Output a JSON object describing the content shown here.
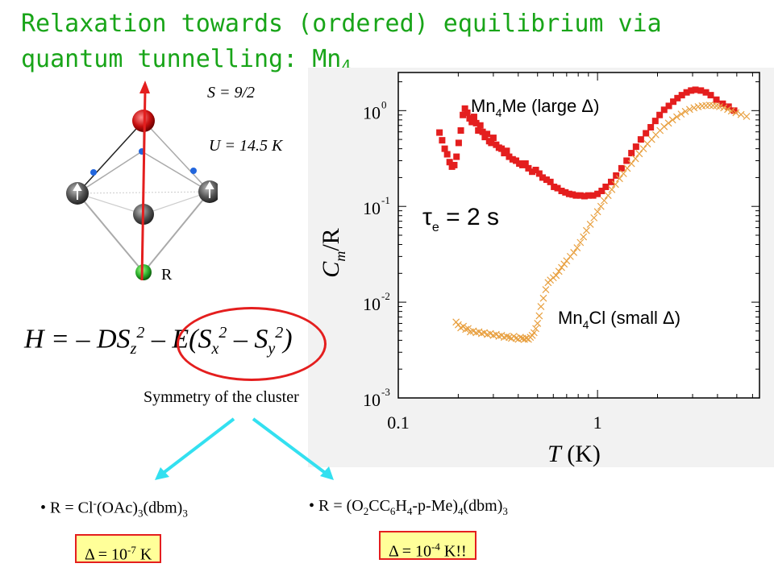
{
  "slide": {
    "title_line1": "Relaxation towards (ordered) equilibrium via",
    "title_line2": "quantum tunnelling: Mn",
    "title_sub": "4",
    "spin": "S = 9/2",
    "barrier": "U = 14.5 K",
    "r_label": "R",
    "hamiltonian": {
      "part1": "H = – DS",
      "z": "z",
      "two_a": "2",
      "part2": " – E(S",
      "x": "x",
      "two_b": "2",
      "part3": " – S",
      "y": "y",
      "two_c": "2",
      "part4": ")"
    },
    "symmetry_text": "Symmetry of the cluster",
    "bullet_left": {
      "prefix": "• R = Cl",
      "sup": "-",
      "mid": "(OAc)",
      "sub1": "3",
      "mid2": "(dbm)",
      "sub2": "3"
    },
    "bullet_right": {
      "prefix": "• R = (O",
      "s1": "2",
      "t1": "CC",
      "s2": "6",
      "t2": "H",
      "s3": "4",
      "t3": "-p-Me)",
      "s4": "4",
      "t4": "(dbm)",
      "s5": "3"
    },
    "box_left": {
      "pre": "Δ = 10",
      "exp": "-7",
      "post": " K"
    },
    "box_right": {
      "pre": "Δ = 10",
      "exp": "-4",
      "post": " K!!"
    },
    "colors": {
      "title": "#19a519",
      "red": "#e41e1e",
      "orange": "#e8a040",
      "cyan": "#33e0f0",
      "box": "#ffff99"
    }
  },
  "chart_data": {
    "type": "scatter",
    "xscale": "log",
    "yscale": "log",
    "xlim": [
      0.1,
      6.5
    ],
    "ylim": [
      0.001,
      2.5
    ],
    "xticks": [
      {
        "v": 0.1,
        "label": "0.1"
      },
      {
        "v": 1,
        "label": "1"
      }
    ],
    "yticks": [
      {
        "v": 1,
        "base": "10",
        "exp": "0"
      },
      {
        "v": 0.1,
        "base": "10",
        "exp": "-1"
      },
      {
        "v": 0.01,
        "base": "10",
        "exp": "-2"
      },
      {
        "v": 0.001,
        "base": "10",
        "exp": "-3"
      }
    ],
    "xlabel": "T (K)",
    "ylabel": "Cm/R",
    "annotation": "τe = 2 s",
    "series": [
      {
        "name": "Mn4Me (large Δ)",
        "marker": "square",
        "color": "#e41e1e",
        "x": [
          0.161,
          0.166,
          0.171,
          0.176,
          0.181,
          0.186,
          0.191,
          0.196,
          0.201,
          0.206,
          0.211,
          0.216,
          0.222,
          0.228,
          0.234,
          0.24,
          0.246,
          0.252,
          0.258,
          0.265,
          0.272,
          0.279,
          0.286,
          0.293,
          0.3,
          0.31,
          0.32,
          0.33,
          0.34,
          0.35,
          0.36,
          0.375,
          0.39,
          0.405,
          0.42,
          0.435,
          0.45,
          0.47,
          0.49,
          0.51,
          0.53,
          0.555,
          0.58,
          0.605,
          0.63,
          0.66,
          0.69,
          0.72,
          0.75,
          0.78,
          0.82,
          0.86,
          0.9,
          0.95,
          1.0,
          1.05,
          1.1,
          1.17,
          1.24,
          1.32,
          1.4,
          1.48,
          1.56,
          1.65,
          1.75,
          1.85,
          1.95,
          2.05,
          2.16,
          2.28,
          2.4,
          2.52,
          2.65,
          2.8,
          2.95,
          3.1,
          3.3,
          3.5,
          3.7,
          3.95,
          4.25,
          4.55,
          4.85
        ],
        "y": [
          0.59,
          0.49,
          0.4,
          0.35,
          0.29,
          0.26,
          0.27,
          0.33,
          0.46,
          0.62,
          0.9,
          1.05,
          0.95,
          0.83,
          0.76,
          0.86,
          0.74,
          0.62,
          0.7,
          0.6,
          0.53,
          0.57,
          0.48,
          0.46,
          0.52,
          0.44,
          0.41,
          0.4,
          0.36,
          0.38,
          0.33,
          0.31,
          0.3,
          0.28,
          0.27,
          0.28,
          0.25,
          0.23,
          0.24,
          0.22,
          0.2,
          0.19,
          0.18,
          0.16,
          0.155,
          0.145,
          0.14,
          0.135,
          0.133,
          0.13,
          0.13,
          0.128,
          0.13,
          0.13,
          0.135,
          0.145,
          0.16,
          0.18,
          0.21,
          0.25,
          0.3,
          0.36,
          0.42,
          0.5,
          0.58,
          0.67,
          0.78,
          0.9,
          1.02,
          1.12,
          1.24,
          1.35,
          1.45,
          1.55,
          1.62,
          1.65,
          1.62,
          1.55,
          1.45,
          1.3,
          1.18,
          1.1,
          1.0
        ]
      },
      {
        "name": "Mn4Cl (small Δ)",
        "marker": "cross",
        "color": "#e8a040",
        "x": [
          0.195,
          0.2,
          0.206,
          0.212,
          0.218,
          0.224,
          0.23,
          0.238,
          0.246,
          0.254,
          0.262,
          0.27,
          0.28,
          0.29,
          0.3,
          0.31,
          0.32,
          0.33,
          0.34,
          0.35,
          0.36,
          0.37,
          0.38,
          0.39,
          0.4,
          0.41,
          0.42,
          0.43,
          0.44,
          0.45,
          0.46,
          0.47,
          0.48,
          0.49,
          0.5,
          0.51,
          0.52,
          0.535,
          0.55,
          0.565,
          0.58,
          0.6,
          0.62,
          0.64,
          0.66,
          0.68,
          0.7,
          0.73,
          0.76,
          0.79,
          0.82,
          0.85,
          0.88,
          0.92,
          0.96,
          1.0,
          1.04,
          1.08,
          1.13,
          1.18,
          1.23,
          1.29,
          1.35,
          1.41,
          1.48,
          1.55,
          1.62,
          1.7,
          1.78,
          1.87,
          1.96,
          2.06,
          2.16,
          2.27,
          2.38,
          2.5,
          2.63,
          2.76,
          2.9,
          3.05,
          3.2,
          3.35,
          3.5,
          3.65,
          3.8,
          3.95,
          4.1,
          4.3,
          4.5,
          4.7,
          4.95,
          5.25,
          5.6
        ],
        "y": [
          0.0062,
          0.0058,
          0.0054,
          0.0056,
          0.0052,
          0.0053,
          0.0049,
          0.005,
          0.0048,
          0.0049,
          0.0047,
          0.0048,
          0.0046,
          0.0047,
          0.0045,
          0.0046,
          0.0044,
          0.0045,
          0.0043,
          0.0044,
          0.0043,
          0.0042,
          0.0044,
          0.0042,
          0.0041,
          0.0043,
          0.0042,
          0.0041,
          0.0042,
          0.0041,
          0.0043,
          0.0045,
          0.0048,
          0.0053,
          0.006,
          0.0072,
          0.009,
          0.011,
          0.0135,
          0.016,
          0.017,
          0.018,
          0.019,
          0.021,
          0.023,
          0.025,
          0.027,
          0.03,
          0.033,
          0.037,
          0.042,
          0.048,
          0.056,
          0.065,
          0.076,
          0.088,
          0.1,
          0.115,
          0.13,
          0.15,
          0.17,
          0.195,
          0.22,
          0.25,
          0.28,
          0.315,
          0.355,
          0.4,
          0.45,
          0.5,
          0.56,
          0.62,
          0.68,
          0.74,
          0.8,
          0.86,
          0.92,
          0.98,
          1.03,
          1.07,
          1.1,
          1.12,
          1.13,
          1.14,
          1.13,
          1.12,
          1.1,
          1.07,
          1.03,
          0.99,
          0.95,
          0.91,
          0.87
        ]
      }
    ]
  }
}
